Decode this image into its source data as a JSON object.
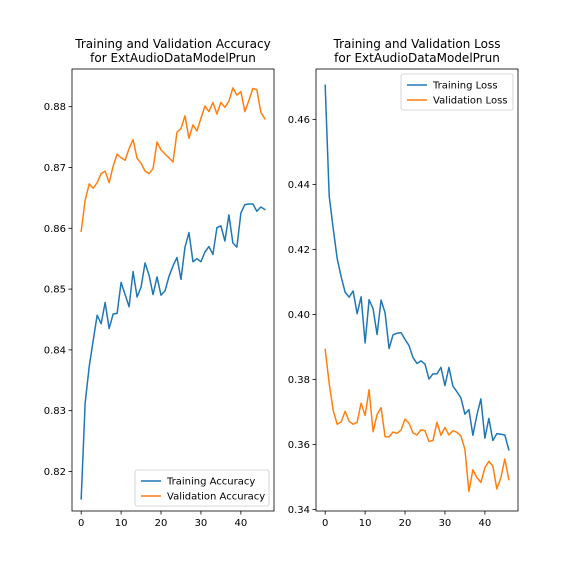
{
  "colors": {
    "training": "#1f77b4",
    "validation": "#ff7f0e"
  },
  "chart_data": [
    {
      "type": "line",
      "title": "Training and Validation Accuracy",
      "subtitle": "for ExtAudioDataModelPrun",
      "xlim": [
        -2.3,
        48.3
      ],
      "ylim": [
        0.8135,
        0.8862
      ],
      "xticks": [
        0,
        10,
        20,
        30,
        40
      ],
      "yticks": [
        0.82,
        0.83,
        0.84,
        0.85,
        0.86,
        0.87,
        0.88
      ],
      "legend_position": "lower-right",
      "series": [
        {
          "name": "Training Accuracy",
          "color": "training",
          "x": [
            0,
            1,
            2,
            3,
            4,
            5,
            6,
            7,
            8,
            9,
            10,
            11,
            12,
            13,
            14,
            15,
            16,
            17,
            18,
            19,
            20,
            21,
            22,
            23,
            24,
            25,
            26,
            27,
            28,
            29,
            30,
            31,
            32,
            33,
            34,
            35,
            36,
            37,
            38,
            39,
            40,
            41,
            42,
            43,
            44,
            45,
            46
          ],
          "values": [
            0.8155,
            0.8313,
            0.8372,
            0.8415,
            0.8457,
            0.8443,
            0.8478,
            0.8435,
            0.8459,
            0.846,
            0.8511,
            0.8491,
            0.8471,
            0.8529,
            0.8487,
            0.8503,
            0.8543,
            0.8523,
            0.8491,
            0.852,
            0.849,
            0.8497,
            0.8521,
            0.8538,
            0.8552,
            0.8516,
            0.8569,
            0.8593,
            0.8545,
            0.855,
            0.8545,
            0.8561,
            0.857,
            0.8557,
            0.8601,
            0.8604,
            0.8579,
            0.8622,
            0.8576,
            0.8569,
            0.8625,
            0.8639,
            0.864,
            0.864,
            0.8628,
            0.8635,
            0.8631
          ]
        },
        {
          "name": "Validation Accuracy",
          "color": "validation",
          "x": [
            0,
            1,
            2,
            3,
            4,
            5,
            6,
            7,
            8,
            9,
            10,
            11,
            12,
            13,
            14,
            15,
            16,
            17,
            18,
            19,
            20,
            21,
            22,
            23,
            24,
            25,
            26,
            27,
            28,
            29,
            30,
            31,
            32,
            33,
            34,
            35,
            36,
            37,
            38,
            39,
            40,
            41,
            42,
            43,
            44,
            45,
            46
          ],
          "values": [
            0.8595,
            0.8646,
            0.8673,
            0.8666,
            0.8675,
            0.869,
            0.8694,
            0.8675,
            0.8702,
            0.8722,
            0.8716,
            0.8712,
            0.8731,
            0.8746,
            0.8715,
            0.8707,
            0.8694,
            0.869,
            0.8698,
            0.8742,
            0.8729,
            0.8722,
            0.8716,
            0.8709,
            0.8758,
            0.8764,
            0.8785,
            0.8748,
            0.877,
            0.876,
            0.8781,
            0.8801,
            0.8792,
            0.8807,
            0.8788,
            0.8807,
            0.8799,
            0.8809,
            0.8831,
            0.8819,
            0.8825,
            0.8792,
            0.881,
            0.883,
            0.8828,
            0.8791,
            0.878
          ]
        }
      ]
    },
    {
      "type": "line",
      "title": "Training and Validation Loss",
      "subtitle": "for ExtAudioDataModelPrun",
      "xlim": [
        -2.3,
        48.3
      ],
      "ylim": [
        0.3395,
        0.4755
      ],
      "xticks": [
        0,
        10,
        20,
        30,
        40
      ],
      "yticks": [
        0.34,
        0.36,
        0.38,
        0.4,
        0.42,
        0.44,
        0.46
      ],
      "legend_position": "upper-right",
      "series": [
        {
          "name": "Training Loss",
          "color": "training",
          "x": [
            0,
            1,
            2,
            3,
            4,
            5,
            6,
            7,
            8,
            9,
            10,
            11,
            12,
            13,
            14,
            15,
            16,
            17,
            18,
            19,
            20,
            21,
            22,
            23,
            24,
            25,
            26,
            27,
            28,
            29,
            30,
            31,
            32,
            33,
            34,
            35,
            36,
            37,
            38,
            39,
            40,
            41,
            42,
            43,
            44,
            45,
            46
          ],
          "values": [
            0.4705,
            0.4365,
            0.4265,
            0.4172,
            0.4116,
            0.4068,
            0.4053,
            0.4072,
            0.4002,
            0.4054,
            0.3912,
            0.4045,
            0.4017,
            0.3938,
            0.4044,
            0.4005,
            0.3895,
            0.3937,
            0.3942,
            0.3944,
            0.3923,
            0.3904,
            0.3867,
            0.3849,
            0.3857,
            0.3847,
            0.3801,
            0.3817,
            0.3817,
            0.3837,
            0.3781,
            0.3837,
            0.3779,
            0.3762,
            0.3743,
            0.3693,
            0.3707,
            0.3628,
            0.369,
            0.374,
            0.3619,
            0.368,
            0.3612,
            0.3633,
            0.3631,
            0.3629,
            0.3583
          ]
        },
        {
          "name": "Validation Loss",
          "color": "validation",
          "x": [
            0,
            1,
            2,
            3,
            4,
            5,
            6,
            7,
            8,
            9,
            10,
            11,
            12,
            13,
            14,
            15,
            16,
            17,
            18,
            19,
            20,
            21,
            22,
            23,
            24,
            25,
            26,
            27,
            28,
            29,
            30,
            31,
            32,
            33,
            34,
            35,
            36,
            37,
            38,
            39,
            40,
            41,
            42,
            43,
            44,
            45,
            46
          ],
          "values": [
            0.3892,
            0.3788,
            0.3705,
            0.3662,
            0.3669,
            0.3702,
            0.3671,
            0.3662,
            0.3668,
            0.3727,
            0.3689,
            0.3768,
            0.3639,
            0.3692,
            0.3713,
            0.3624,
            0.3623,
            0.3638,
            0.3634,
            0.3644,
            0.3678,
            0.3665,
            0.3635,
            0.3629,
            0.3645,
            0.3642,
            0.3609,
            0.3612,
            0.3668,
            0.3628,
            0.3652,
            0.3629,
            0.3642,
            0.3637,
            0.3626,
            0.3585,
            0.3455,
            0.3522,
            0.3498,
            0.3483,
            0.3528,
            0.3548,
            0.3533,
            0.3463,
            0.3497,
            0.3555,
            0.3492
          ]
        }
      ]
    }
  ]
}
